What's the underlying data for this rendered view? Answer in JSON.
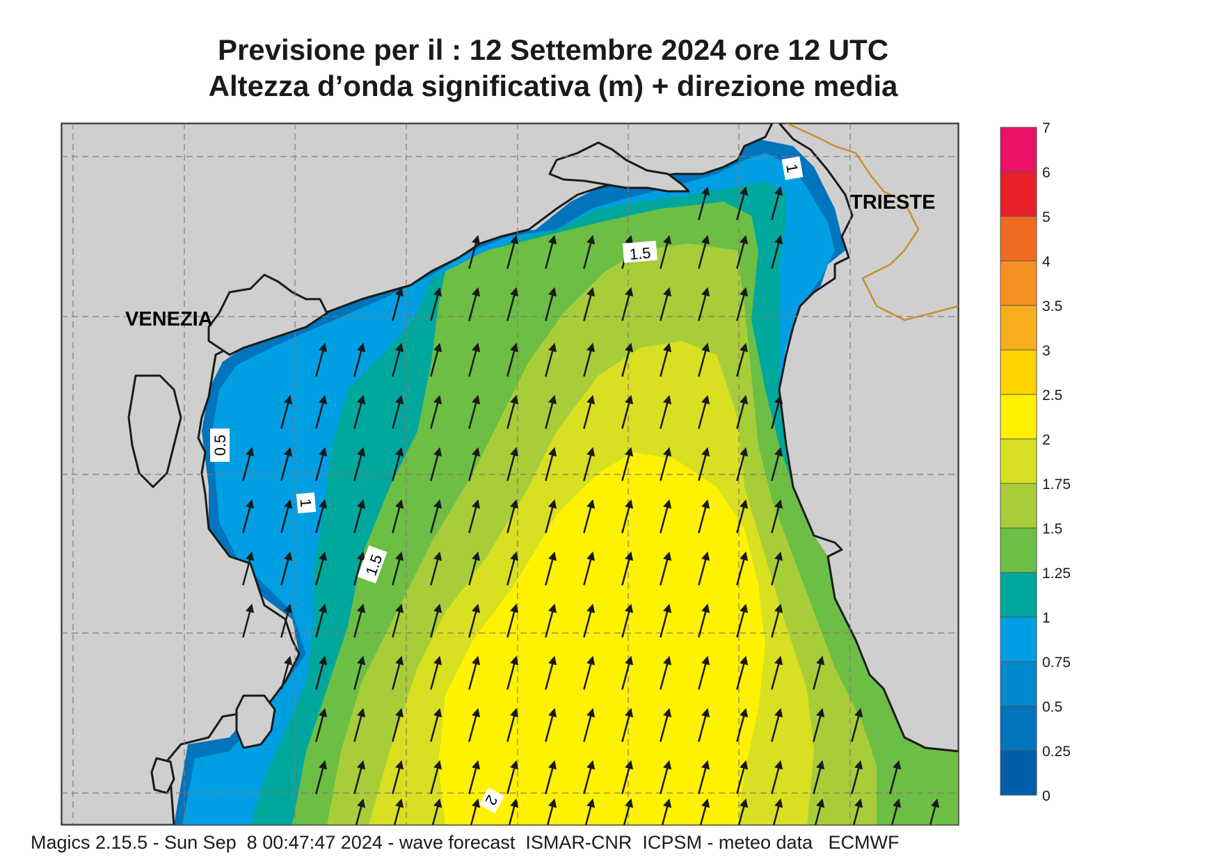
{
  "header": {
    "title_line1": "Previsione per il  :  12 Settembre 2024   ore 12 UTC",
    "title_line2": "Altezza d’onda significativa (m) + direzione media"
  },
  "map": {
    "city_labels": [
      "VENEZIA",
      "TRIESTE"
    ],
    "contour_labels": [
      "1",
      "1.5",
      "0.5",
      "1",
      "1.5",
      "2"
    ],
    "land_color": "#cfcfcf",
    "border_color": "#c8902c",
    "wind_arrow_rotation_deg": 15
  },
  "legend": {
    "labels": [
      "7",
      "6",
      "5",
      "4",
      "3.5",
      "3",
      "2.5",
      "2",
      "1.75",
      "1.5",
      "1.25",
      "1",
      "0.75",
      "0.5",
      "0.25",
      "0"
    ],
    "colors": [
      "#ec1166",
      "#e8202a",
      "#f06a20",
      "#f58f21",
      "#f8ae1b",
      "#fdd300",
      "#fff200",
      "#d9e021",
      "#a7ce39",
      "#6cbe45",
      "#00a79d",
      "#009fe3",
      "#0089cf",
      "#0074bc",
      "#005eaa"
    ]
  },
  "footer": {
    "text": "Magics 2.15.5 - Sun Sep  8 00:47:47 2024 - wave forecast  ISMAR-CNR  ICPSM - meteo data   ECMWF"
  }
}
